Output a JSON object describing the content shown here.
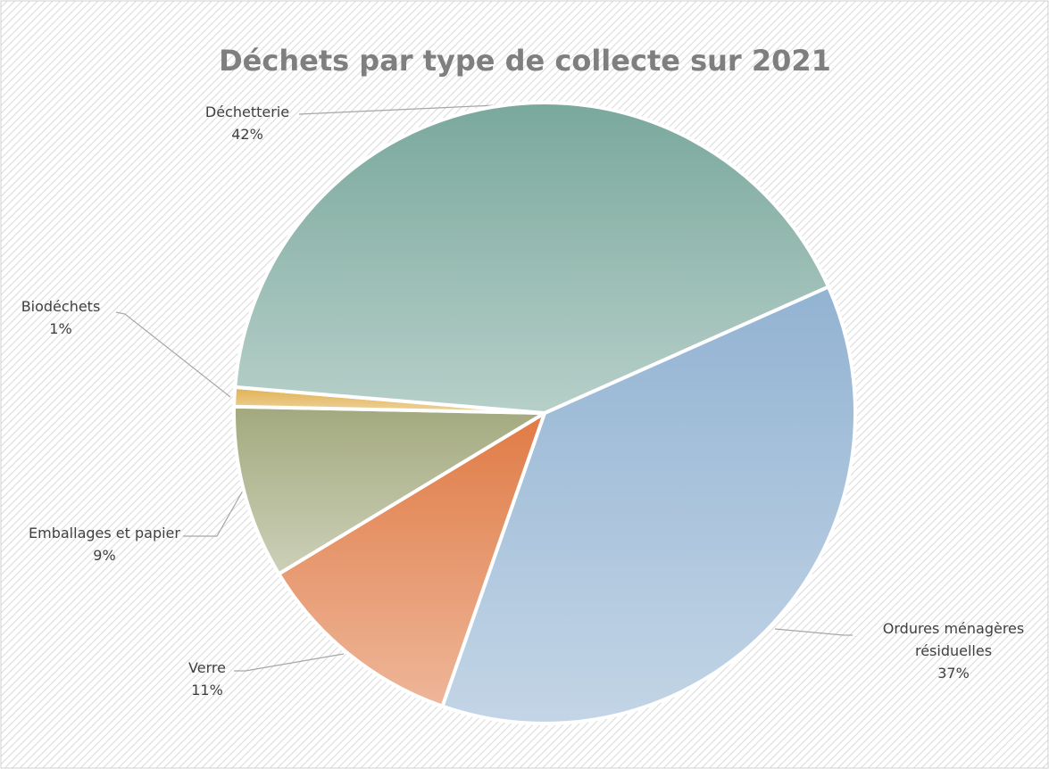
{
  "chart_data": {
    "type": "pie",
    "title": "Déchets par type de collecte sur 2021",
    "categories": [
      "Ordures ménagères résiduelles",
      "Verre",
      "Emballages et papier",
      "Biodéchets",
      "Déchetterie"
    ],
    "values": [
      37,
      11,
      9,
      1,
      42
    ],
    "value_labels": [
      "37%",
      "11%",
      "9%",
      "1%",
      "42%"
    ],
    "colors": [
      "#92b3d2",
      "#e07b45",
      "#a3a97e",
      "#e0b050",
      "#7aa89c"
    ]
  }
}
